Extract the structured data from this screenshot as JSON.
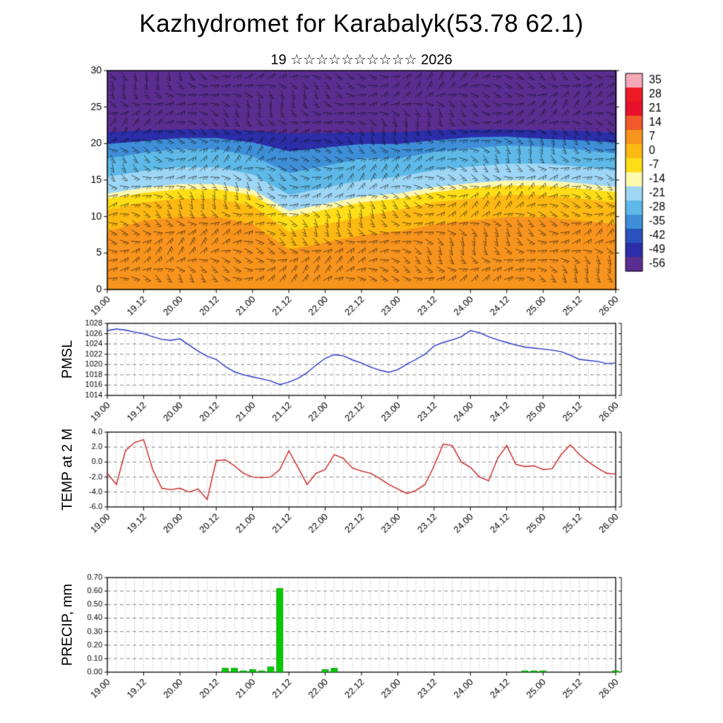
{
  "header": {
    "title": "Kazhydromet for Karabalyk(53.78 62.1)",
    "subtitle": "19 ☆☆☆☆☆☆☆☆☆☆ 2026"
  },
  "time_axis": {
    "ticklabels": [
      "19.00",
      "19.12",
      "20.00",
      "20.12",
      "21.00",
      "21.12",
      "22.00",
      "22.12",
      "23.00",
      "23.12",
      "24.00",
      "24.12",
      "25.00",
      "25.12",
      "26.00"
    ]
  },
  "chart_data": [
    {
      "id": "temperature-wind-cross-section",
      "type": "heatmap",
      "ylim": [
        0,
        30
      ],
      "yticks": [
        0,
        5,
        10,
        15,
        20,
        25,
        30
      ],
      "colorbar": {
        "values": [
          35,
          28,
          21,
          14,
          7,
          0,
          -7,
          -14,
          -21,
          -28,
          -35,
          -42,
          -49,
          -56
        ],
        "colors": [
          "#F5A9B8",
          "#ED1C24",
          "#E8112D",
          "#F1592A",
          "#F7941D",
          "#FDB913",
          "#FFDE17",
          "#FFF9AE",
          "#9ED7F5",
          "#5EB9E8",
          "#3F8FD8",
          "#2A52BE",
          "#2B2EA8",
          "#5C2D91"
        ]
      },
      "bands": [
        {
          "name": "deep-orange",
          "color": "#F7941D",
          "top": [
            8,
            9.5,
            10,
            10,
            9,
            5.5,
            6.5,
            7.5,
            8,
            9,
            9.5,
            10,
            10,
            9.5,
            9
          ]
        },
        {
          "name": "orange",
          "color": "#FDB913",
          "top": [
            11,
            12,
            12.5,
            12.5,
            11.5,
            8,
            9,
            10,
            11,
            12,
            12.5,
            13,
            13,
            12.5,
            12
          ]
        },
        {
          "name": "yellow",
          "color": "#FFDE17",
          "top": [
            12.5,
            13.3,
            13.8,
            13.8,
            13,
            10,
            11,
            12,
            12.5,
            13.4,
            13.9,
            14.3,
            14.3,
            13.9,
            13.4
          ]
        },
        {
          "name": "pale-yellow",
          "color": "#FFF9AE",
          "top": [
            13.2,
            14,
            14.5,
            14.5,
            13.7,
            10.8,
            11.8,
            12.8,
            13.2,
            14.1,
            14.6,
            15,
            15,
            14.6,
            14.1
          ]
        },
        {
          "name": "light-blue",
          "color": "#9ED7F5",
          "top": [
            15.5,
            16.3,
            16.8,
            16.8,
            15.8,
            13,
            14,
            15,
            15.5,
            16.4,
            16.9,
            17.3,
            17.3,
            16.9,
            16.4
          ]
        },
        {
          "name": "sky-blue",
          "color": "#5EB9E8",
          "top": [
            18,
            18.8,
            19.3,
            19.3,
            18.3,
            16,
            17,
            18,
            18,
            18.9,
            19.4,
            19.8,
            19.6,
            19.2,
            18.7
          ]
        },
        {
          "name": "blue",
          "color": "#3F8FD8",
          "top": [
            20,
            20.4,
            20.8,
            20.8,
            20.2,
            19,
            19.5,
            20,
            20,
            20.5,
            20.9,
            21,
            20.7,
            20.5,
            20.2
          ]
        },
        {
          "name": "navy",
          "color": "#2B2EA8",
          "top": [
            21.6,
            21.9,
            22,
            22,
            21.8,
            21.4,
            21.5,
            21.6,
            21.6,
            21.9,
            22,
            22,
            21.9,
            21.8,
            21.6
          ]
        },
        {
          "name": "purple",
          "color": "#5C2D91",
          "top": [
            30,
            30,
            30,
            30,
            30,
            30,
            30,
            30,
            30,
            30,
            30,
            30,
            30,
            30,
            30
          ]
        }
      ],
      "wind_barbs": {
        "spacing_x": 16,
        "spacing_y": 13,
        "length": 13
      }
    },
    {
      "id": "pmsl",
      "type": "line",
      "label": "PMSL",
      "color": "#2233CC",
      "ylim": [
        1014,
        1028
      ],
      "yticks": [
        "1014",
        "1016",
        "1018",
        "1020",
        "1022",
        "1024",
        "1026",
        "1028"
      ],
      "values": [
        1026.6,
        1026.9,
        1026.7,
        1026.3,
        1026.0,
        1025.4,
        1024.9,
        1024.7,
        1025.0,
        1023.8,
        1022.6,
        1021.6,
        1021.0,
        1019.6,
        1018.6,
        1018.0,
        1017.6,
        1017.2,
        1016.8,
        1016.1,
        1016.6,
        1017.3,
        1018.4,
        1019.9,
        1021.2,
        1021.9,
        1021.7,
        1020.9,
        1020.3,
        1019.5,
        1018.9,
        1018.5,
        1019.0,
        1020.1,
        1021.0,
        1022.0,
        1023.6,
        1024.3,
        1024.8,
        1025.4,
        1026.6,
        1026.2,
        1025.4,
        1024.8,
        1024.3,
        1023.8,
        1023.4,
        1023.2,
        1023.0,
        1022.8,
        1022.5,
        1021.8,
        1021.0,
        1020.8,
        1020.6,
        1020.2,
        1020.3
      ]
    },
    {
      "id": "temp2m",
      "type": "line",
      "label": "TEMP at 2 M",
      "color": "#CC2020",
      "ylim": [
        -6,
        4
      ],
      "yticks": [
        "-6.0",
        "-4.0",
        "-2.0",
        "0.0",
        "2.0",
        "4.0"
      ],
      "values": [
        -1.5,
        -3.0,
        1.5,
        2.6,
        3.0,
        -1.0,
        -3.5,
        -3.7,
        -3.5,
        -4.0,
        -3.6,
        -5.0,
        0.2,
        0.3,
        -0.5,
        -1.5,
        -2.0,
        -2.1,
        -2.0,
        -1.0,
        1.5,
        -0.7,
        -3.0,
        -1.5,
        -1.0,
        1.0,
        0.5,
        -0.8,
        -1.2,
        -1.5,
        -2.2,
        -3.0,
        -3.6,
        -4.2,
        -3.8,
        -3.0,
        -0.5,
        2.4,
        2.2,
        0.0,
        -0.7,
        -2.0,
        -2.5,
        0.5,
        2.2,
        -0.3,
        -0.6,
        -0.5,
        -1.0,
        -0.9,
        1.0,
        2.3,
        1.0,
        0.0,
        -0.8,
        -1.5,
        -1.6
      ]
    },
    {
      "id": "precip",
      "type": "bar",
      "label": "PRECIP, mm",
      "color": "#00CC00",
      "ylim": [
        0,
        0.7
      ],
      "yticks": [
        "0.00",
        "0.10",
        "0.20",
        "0.30",
        "0.40",
        "0.50",
        "0.60",
        "0.70"
      ],
      "values": [
        0,
        0,
        0,
        0,
        0,
        0,
        0,
        0,
        0,
        0,
        0,
        0,
        0,
        0.03,
        0.03,
        0.01,
        0.02,
        0.01,
        0.04,
        0.62,
        0,
        0,
        0,
        0,
        0.02,
        0.03,
        0,
        0,
        0,
        0,
        0,
        0,
        0,
        0,
        0,
        0,
        0,
        0,
        0,
        0,
        0,
        0,
        0,
        0,
        0,
        0,
        0.01,
        0.01,
        0.01,
        0,
        0,
        0,
        0,
        0,
        0,
        0,
        0.01
      ]
    }
  ]
}
